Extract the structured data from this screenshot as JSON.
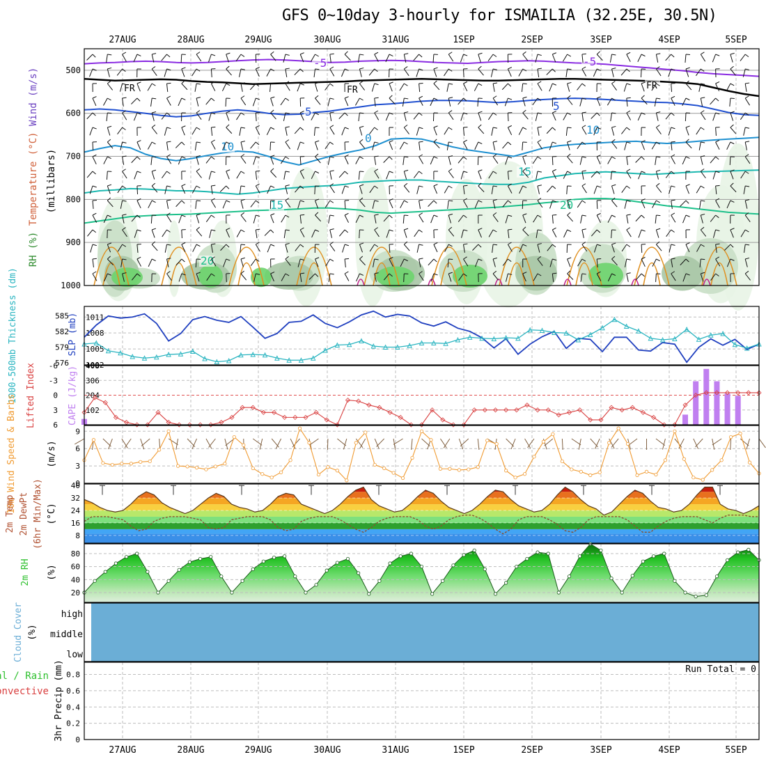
{
  "title": "GFS 0~10day 3-hourly for ISMAILIA (32.25E, 30.5N)",
  "date_labels": [
    "27AUG",
    "28AUG",
    "29AUG",
    "30AUG",
    "31AUG",
    "1SEP",
    "2SEP",
    "3SEP",
    "4SEP",
    "5SEP"
  ],
  "colors": {
    "frame": "#000000",
    "grid": "#bdbdbd",
    "slp": "#1f3fbf",
    "thick": "#28b4c0",
    "li": "#d94040",
    "cape": "#c07ff0",
    "wind": "#f09a30",
    "barb": "#806040",
    "rh": "#2ec02e",
    "cloud": "#6baed6",
    "precip": "#2ec02e",
    "conv": "#d94040"
  },
  "chart_data": [
    {
      "type": "contour",
      "id": "upper_air",
      "ylabel_wind": "Wind (m/s)",
      "ylabel_temp": "Temperature (°C)",
      "ylabel_rh": "RH (%)",
      "ylabel_units": "(millibars)",
      "yticks": [
        500,
        600,
        700,
        800,
        900,
        1000
      ],
      "ylim": [
        450,
        1000
      ],
      "contour_labels": [
        "-5",
        "-5",
        "FR",
        "FR",
        "FR",
        "5",
        "5",
        "10",
        "10",
        "0",
        "15",
        "15",
        "20",
        "20"
      ],
      "isotherms": [
        {
          "label": "-5",
          "values": [
            485,
            483,
            482,
            480,
            479,
            480,
            482,
            483,
            482,
            480,
            478,
            476,
            475,
            476,
            478,
            480,
            482,
            481,
            479,
            478,
            477,
            478,
            480,
            482,
            483,
            484,
            482,
            480,
            479,
            478,
            479,
            481,
            483,
            484,
            486,
            489,
            492,
            495,
            498,
            501,
            505,
            508,
            510,
            512,
            514
          ]
        },
        {
          "label": "FR",
          "values": [
            520,
            522,
            524,
            523,
            522,
            521,
            522,
            525,
            527,
            528,
            530,
            532,
            531,
            530,
            529,
            528,
            527,
            526,
            524,
            523,
            522,
            521,
            520,
            521,
            522,
            523,
            524,
            524,
            523,
            522,
            521,
            520,
            520,
            521,
            522,
            523,
            524,
            525,
            527,
            529,
            532,
            540,
            548,
            555,
            560
          ]
        },
        {
          "label": "5",
          "values": [
            592,
            590,
            592,
            596,
            600,
            605,
            608,
            606,
            600,
            595,
            592,
            595,
            600,
            603,
            602,
            598,
            595,
            590,
            585,
            580,
            578,
            575,
            572,
            570,
            570,
            571,
            573,
            575,
            573,
            570,
            568,
            566,
            565,
            566,
            568,
            570,
            572,
            574,
            575,
            578,
            582,
            590,
            598,
            603,
            605
          ]
        },
        {
          "label": "10",
          "values": [
            690,
            682,
            675,
            680,
            695,
            705,
            710,
            705,
            698,
            692,
            688,
            690,
            700,
            712,
            720,
            710,
            700,
            692,
            685,
            675,
            660,
            658,
            660,
            668,
            678,
            685,
            690,
            695,
            700,
            690,
            680,
            675,
            672,
            670,
            668,
            666,
            665,
            668,
            670,
            668,
            665,
            662,
            660,
            658,
            656
          ]
        },
        {
          "label": "15",
          "values": [
            785,
            780,
            778,
            775,
            776,
            778,
            780,
            780,
            782,
            785,
            788,
            785,
            780,
            775,
            772,
            770,
            768,
            765,
            760,
            758,
            756,
            755,
            755,
            758,
            760,
            762,
            764,
            765,
            765,
            760,
            750,
            745,
            740,
            738,
            736,
            738,
            740,
            742,
            740,
            738,
            736,
            735,
            734,
            733,
            732
          ]
        },
        {
          "label": "20",
          "values": [
            855,
            850,
            845,
            840,
            838,
            836,
            835,
            834,
            832,
            830,
            828,
            826,
            825,
            824,
            822,
            820,
            820,
            822,
            825,
            830,
            832,
            830,
            828,
            826,
            824,
            822,
            820,
            818,
            815,
            812,
            808,
            805,
            800,
            798,
            798,
            800,
            805,
            810,
            815,
            818,
            822,
            826,
            830,
            832,
            834
          ]
        }
      ]
    },
    {
      "type": "line",
      "id": "slp_thickness",
      "ylabel_left": "1000-500mb Thickness (dm)",
      "ylabel_right": "SLP (mb)",
      "left_ticks": [
        "585",
        "582",
        "579",
        "576"
      ],
      "right_ticks": [
        "1011",
        "1008",
        "1005",
        "1002"
      ],
      "slp_range": [
        1002,
        1013
      ],
      "thick_range": [
        575.6,
        586.8
      ],
      "series": [
        {
          "name": "SLP (mb)",
          "values": [
            1007.2,
            1009.5,
            1011.2,
            1010.8,
            1011.0,
            1011.6,
            1009.8,
            1006.5,
            1007.9,
            1010.5,
            1011.1,
            1010.4,
            1010.0,
            1011.1,
            1009.1,
            1007.0,
            1007.9,
            1010.0,
            1010.2,
            1011.4,
            1009.8,
            1009.0,
            1010.1,
            1011.4,
            1012.1,
            1011.0,
            1011.5,
            1011.2,
            1009.9,
            1009.3,
            1010.1,
            1008.9,
            1008.3,
            1007.1,
            1005.2,
            1006.9,
            1004.0,
            1005.9,
            1007.3,
            1008.3,
            1005.1,
            1007.0,
            1006.8,
            1004.5,
            1007.2,
            1007.2,
            1004.8,
            1004.6,
            1006.2,
            1005.9,
            1002.5,
            1005.3,
            1006.9,
            1005.7,
            1006.8,
            1004.9,
            1005.9
          ]
        },
        {
          "name": "1000-500mb Thickness (dm)",
          "values": [
            579.6,
            579.8,
            578.3,
            577.9,
            577.2,
            576.9,
            577.1,
            577.6,
            577.7,
            578.2,
            576.8,
            576.2,
            576.4,
            577.5,
            577.6,
            577.5,
            576.9,
            576.5,
            576.5,
            576.9,
            578.4,
            579.4,
            579.5,
            580.2,
            579.2,
            579.0,
            579.0,
            579.3,
            579.8,
            579.8,
            579.7,
            580.4,
            580.9,
            580.7,
            580.6,
            580.8,
            580.7,
            582.3,
            582.2,
            581.8,
            581.7,
            580.4,
            581.4,
            582.7,
            584.3,
            583.0,
            582.1,
            580.7,
            580.4,
            580.6,
            582.4,
            580.5,
            581.3,
            581.6,
            579.5,
            578.8,
            579.6
          ]
        }
      ]
    },
    {
      "type": "bar+line",
      "id": "li_cape",
      "ylabel_left": "Lifted Index",
      "ylabel_right": "CAPE (J/kg)",
      "li_ticks": [
        "-6",
        "-3",
        "0",
        "3",
        "6"
      ],
      "cape_ticks": [
        "408",
        "306",
        "204",
        "102"
      ],
      "li_range": [
        -6,
        6
      ],
      "cape_range": [
        0,
        408
      ],
      "series": [
        {
          "name": "Lifted Index",
          "values": [
            3.5,
            0.5,
            1.5,
            4.5,
            5.5,
            6,
            6,
            3.5,
            5.5,
            6,
            6,
            6,
            6,
            5.5,
            4.5,
            2.5,
            2.5,
            3.5,
            3.5,
            4.5,
            4.5,
            4.5,
            3.5,
            5,
            6,
            1,
            1.2,
            2,
            2.5,
            3.5,
            4.5,
            6,
            6,
            3,
            5,
            6,
            6,
            3,
            3,
            3,
            3,
            3,
            2,
            3,
            3,
            4,
            3.5,
            3,
            5,
            5,
            2.5,
            3,
            2.5,
            3.5,
            4.5,
            6,
            6,
            2,
            0,
            -0.5,
            -0.5,
            -0.5,
            -0.5,
            -0.5,
            -0.5
          ]
        },
        {
          "name": "CAPE (J/kg)",
          "values": [
            40,
            0,
            0,
            0,
            0,
            0,
            0,
            0,
            0,
            0,
            0,
            0,
            0,
            0,
            0,
            0,
            0,
            0,
            0,
            0,
            0,
            0,
            0,
            0,
            0,
            0,
            0,
            0,
            0,
            0,
            0,
            0,
            0,
            0,
            0,
            0,
            0,
            0,
            0,
            0,
            0,
            0,
            0,
            0,
            0,
            0,
            0,
            0,
            0,
            0,
            0,
            0,
            0,
            0,
            0,
            0,
            0,
            70,
            300,
            385,
            300,
            215,
            200,
            0,
            0
          ]
        }
      ]
    },
    {
      "type": "line",
      "id": "wind10m",
      "ylabel": "10m Wind Speed & Barbs",
      "units": "(m/s)",
      "yticks": [
        "9",
        "6",
        "3",
        "0"
      ],
      "ylim": [
        0,
        10
      ],
      "series": [
        {
          "name": "10m Wind Speed (m/s)",
          "values": [
            4.0,
            7.5,
            3.5,
            3.2,
            3.4,
            3.4,
            3.7,
            3.8,
            5.8,
            9.0,
            3.0,
            2.9,
            2.7,
            2.4,
            2.9,
            3.4,
            8.0,
            6.6,
            2.6,
            1.6,
            1.0,
            1.9,
            4.0,
            9.5,
            7.0,
            1.5,
            2.8,
            2.2,
            0.5,
            7.0,
            8.8,
            3.2,
            2.6,
            1.8,
            0.9,
            4.4,
            9.0,
            7.5,
            2.5,
            2.5,
            2.3,
            2.4,
            2.8,
            7.4,
            6.8,
            2.2,
            1.0,
            1.6,
            4.6,
            7.2,
            8.5,
            3.8,
            2.4,
            2.0,
            1.4,
            1.9,
            7.0,
            9.5,
            6.8,
            1.4,
            2.0,
            1.5,
            4.0,
            9.0,
            4.2,
            1.0,
            0.6,
            2.3,
            4.0,
            8.0,
            8.6,
            3.6,
            1.7
          ]
        }
      ]
    },
    {
      "type": "area",
      "id": "temp2m",
      "ylabel": "2m Temp",
      "ylabel2": "2m DewPt",
      "ylabel3": "(6hr Min/Max)",
      "units": "(°C)",
      "yticks": [
        "40",
        "32",
        "24",
        "16",
        "8"
      ],
      "ylim": [
        3,
        41
      ],
      "series": [
        {
          "name": "2m Temp (°C)",
          "values": [
            31,
            29,
            26,
            24,
            23,
            24,
            28,
            33,
            36,
            34,
            29,
            26,
            24,
            22,
            24,
            28,
            32,
            35,
            33,
            28,
            26,
            25,
            23,
            24,
            28,
            33,
            35,
            34,
            28,
            26,
            24,
            22,
            24,
            28,
            33,
            37,
            39,
            31,
            27,
            25,
            23,
            24,
            28,
            33,
            37,
            35,
            30,
            26,
            24,
            22,
            24,
            28,
            33,
            37,
            36,
            31,
            27,
            25,
            23,
            24,
            28,
            34,
            39,
            36,
            31,
            27,
            25,
            21,
            23,
            28,
            33,
            37,
            35,
            30,
            26,
            25,
            23,
            24,
            28,
            34,
            39,
            39,
            28,
            25,
            24,
            22,
            24,
            27
          ]
        },
        {
          "name": "2m DewPt (°C)",
          "values": [
            17,
            20,
            20,
            20,
            19,
            18,
            14,
            11,
            12,
            17,
            19,
            20,
            20,
            20,
            19,
            18,
            13,
            12,
            13,
            18,
            19,
            20,
            20,
            20,
            18,
            13,
            11,
            12,
            17,
            19,
            20,
            20,
            20,
            18,
            15,
            12,
            10,
            13,
            17,
            19,
            20,
            20,
            20,
            18,
            14,
            12,
            14,
            18,
            20,
            21,
            21,
            19,
            16,
            12,
            9,
            12,
            18,
            20,
            20,
            20,
            18,
            15,
            11,
            10,
            13,
            18,
            20,
            20,
            20,
            20,
            18,
            14,
            10,
            10,
            14,
            17,
            19,
            20,
            20,
            20,
            18,
            16,
            19,
            21,
            21,
            21,
            20,
            20
          ]
        }
      ]
    },
    {
      "type": "area",
      "id": "rh2m",
      "ylabel": "2m RH",
      "units": "(%)",
      "yticks": [
        "80",
        "60",
        "40",
        "20"
      ],
      "ylim": [
        5,
        95
      ],
      "series": [
        {
          "name": "2m RH (%)",
          "values": [
            20,
            38,
            52,
            65,
            75,
            80,
            52,
            20,
            38,
            55,
            67,
            72,
            75,
            45,
            20,
            38,
            56,
            68,
            74,
            76,
            45,
            20,
            32,
            54,
            66,
            72,
            50,
            18,
            38,
            65,
            76,
            80,
            60,
            18,
            38,
            62,
            78,
            85,
            56,
            18,
            35,
            60,
            72,
            82,
            80,
            20,
            45,
            76,
            95,
            85,
            42,
            20,
            46,
            68,
            76,
            80,
            38,
            20,
            14,
            16,
            45,
            70,
            82,
            86,
            70
          ]
        }
      ]
    },
    {
      "type": "area",
      "id": "cloud",
      "ylabel": "Cloud Cover",
      "units": "(%)",
      "levels": [
        "high",
        "middle",
        "low"
      ],
      "series": [
        {
          "name": "cloud cover (%)",
          "values": [
            0
          ]
        }
      ]
    },
    {
      "type": "bar",
      "id": "precip",
      "ylabel": "3hr Precip (mm)",
      "ylabel2": "Total / Rain",
      "ylabel3": "Convective",
      "yticks": [
        "0.8",
        "0.6",
        "0.4",
        "0.2",
        "0"
      ],
      "ylim": [
        0,
        0.95
      ],
      "run_total": "Run Total = 0",
      "series": [
        {
          "name": "3hr Precip (mm)",
          "values": [
            0
          ]
        }
      ]
    }
  ]
}
